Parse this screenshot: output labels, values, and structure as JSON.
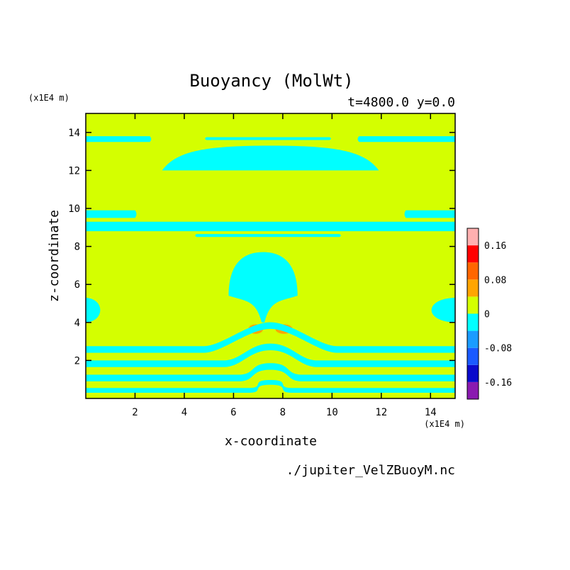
{
  "chart_data": {
    "type": "heatmap",
    "title": "Buoyancy (MolWt)",
    "subtitle": "t=4800.0 y=0.0",
    "xlabel": "x-coordinate",
    "ylabel": "z-coordinate",
    "x_scale_note": "(x1E4 m)",
    "y_scale_note": "(x1E4 m)",
    "source_file": "./jupiter_VelZBuoyM.nc",
    "xlim": [
      0,
      15
    ],
    "ylim": [
      0,
      15
    ],
    "x_ticks": [
      2,
      4,
      6,
      8,
      10,
      12,
      14
    ],
    "y_ticks": [
      2,
      4,
      6,
      8,
      10,
      12,
      14
    ],
    "x_tick_labels": [
      "2",
      "4",
      "6",
      "8",
      "10",
      "12",
      "14"
    ],
    "y_tick_labels": [
      "2",
      "4",
      "6",
      "8",
      "10",
      "12",
      "14"
    ],
    "background_level": 0,
    "colorbar": {
      "levels": [
        -0.2,
        -0.16,
        -0.12,
        -0.08,
        -0.04,
        0,
        0.04,
        0.08,
        0.12,
        0.16,
        0.2
      ],
      "colors": [
        "#8a1ab0",
        "#0a0acc",
        "#1a5aff",
        "#1a9cff",
        "#00ffff",
        "#d4ff00",
        "#ffa500",
        "#ff6600",
        "#ff0000",
        "#ffb0b0"
      ],
      "tick_values": [
        -0.16,
        -0.08,
        0,
        0.08,
        0.16
      ],
      "tick_labels": [
        "-0.16",
        "-0.08",
        "0",
        "0.08",
        "0.16"
      ]
    },
    "regions": [
      {
        "level": -0.02,
        "color": "#00ffff",
        "shape": "band",
        "x": [
          0,
          2.6
        ],
        "z": [
          13.5,
          13.8
        ],
        "x_edge": [
          2.6,
          2.6
        ]
      },
      {
        "level": -0.02,
        "color": "#00ffff",
        "shape": "band",
        "x": [
          11.1,
          15
        ],
        "z": [
          13.5,
          13.8
        ],
        "x_edge": [
          11.1,
          11.1
        ]
      },
      {
        "level": -0.02,
        "color": "#00ffff",
        "shape": "band",
        "x": [
          4.9,
          9.9
        ],
        "z": [
          13.6,
          13.75
        ],
        "x_edge": [
          5.2,
          9.6
        ]
      },
      {
        "level": -0.02,
        "color": "#00ffff",
        "shape": "dome",
        "x": [
          3.1,
          11.9
        ],
        "z": [
          12.0,
          13.3
        ]
      },
      {
        "level": -0.02,
        "color": "#00ffff",
        "shape": "band",
        "x": [
          0,
          15
        ],
        "z": [
          8.8,
          9.3
        ],
        "x_edge": [
          1.0,
          14.0
        ]
      },
      {
        "level": -0.02,
        "color": "#00ffff",
        "shape": "band",
        "x": [
          0,
          2.0
        ],
        "z": [
          9.5,
          9.9
        ],
        "x_edge": [
          2.0,
          13.0
        ]
      },
      {
        "level": -0.02,
        "color": "#00ffff",
        "shape": "band",
        "x": [
          13.0,
          15
        ],
        "z": [
          9.5,
          9.9
        ],
        "x_edge": [
          13.0,
          13.0
        ]
      },
      {
        "level": -0.02,
        "color": "#00ffff",
        "shape": "band",
        "x": [
          4.5,
          10.3
        ],
        "z": [
          8.5,
          8.65
        ],
        "x_edge": [
          4.8,
          10.0
        ]
      },
      {
        "level": -0.02,
        "color": "#00ffff",
        "shape": "plume",
        "x": [
          5.8,
          8.6
        ],
        "z": [
          4.0,
          7.7
        ]
      },
      {
        "level": -0.02,
        "color": "#00ffff",
        "shape": "lobe",
        "x": [
          0,
          0.8
        ],
        "z": [
          4.0,
          5.3
        ]
      },
      {
        "level": -0.02,
        "color": "#00ffff",
        "shape": "lobe",
        "x": [
          13.7,
          15
        ],
        "z": [
          4.0,
          5.3
        ]
      },
      {
        "level": 0.06,
        "color": "#ffa500",
        "shape": "blob",
        "x": [
          6.6,
          7.2
        ],
        "z": [
          3.4,
          3.9
        ]
      },
      {
        "level": 0.06,
        "color": "#ffa500",
        "shape": "blob",
        "x": [
          7.7,
          8.4
        ],
        "z": [
          3.4,
          3.9
        ]
      },
      {
        "level": -0.02,
        "color": "#00ffff",
        "shape": "wave_band",
        "x": [
          0,
          15
        ],
        "z": [
          2.4,
          2.75
        ],
        "x_edge": [
          4.8,
          10.2
        ]
      },
      {
        "level": -0.02,
        "color": "#00ffff",
        "shape": "wave_band",
        "x": [
          0,
          15
        ],
        "z": [
          1.65,
          2.0
        ],
        "x_edge": [
          5.6,
          9.4
        ]
      },
      {
        "level": -0.02,
        "color": "#00ffff",
        "shape": "wave_band",
        "x": [
          0,
          15
        ],
        "z": [
          0.9,
          1.25
        ],
        "x_edge": [
          6.2,
          8.8
        ]
      },
      {
        "level": -0.02,
        "color": "#00ffff",
        "shape": "wave_band",
        "x": [
          0,
          15
        ],
        "z": [
          0.3,
          0.55
        ],
        "x_edge": [
          6.6,
          8.4
        ]
      }
    ]
  }
}
